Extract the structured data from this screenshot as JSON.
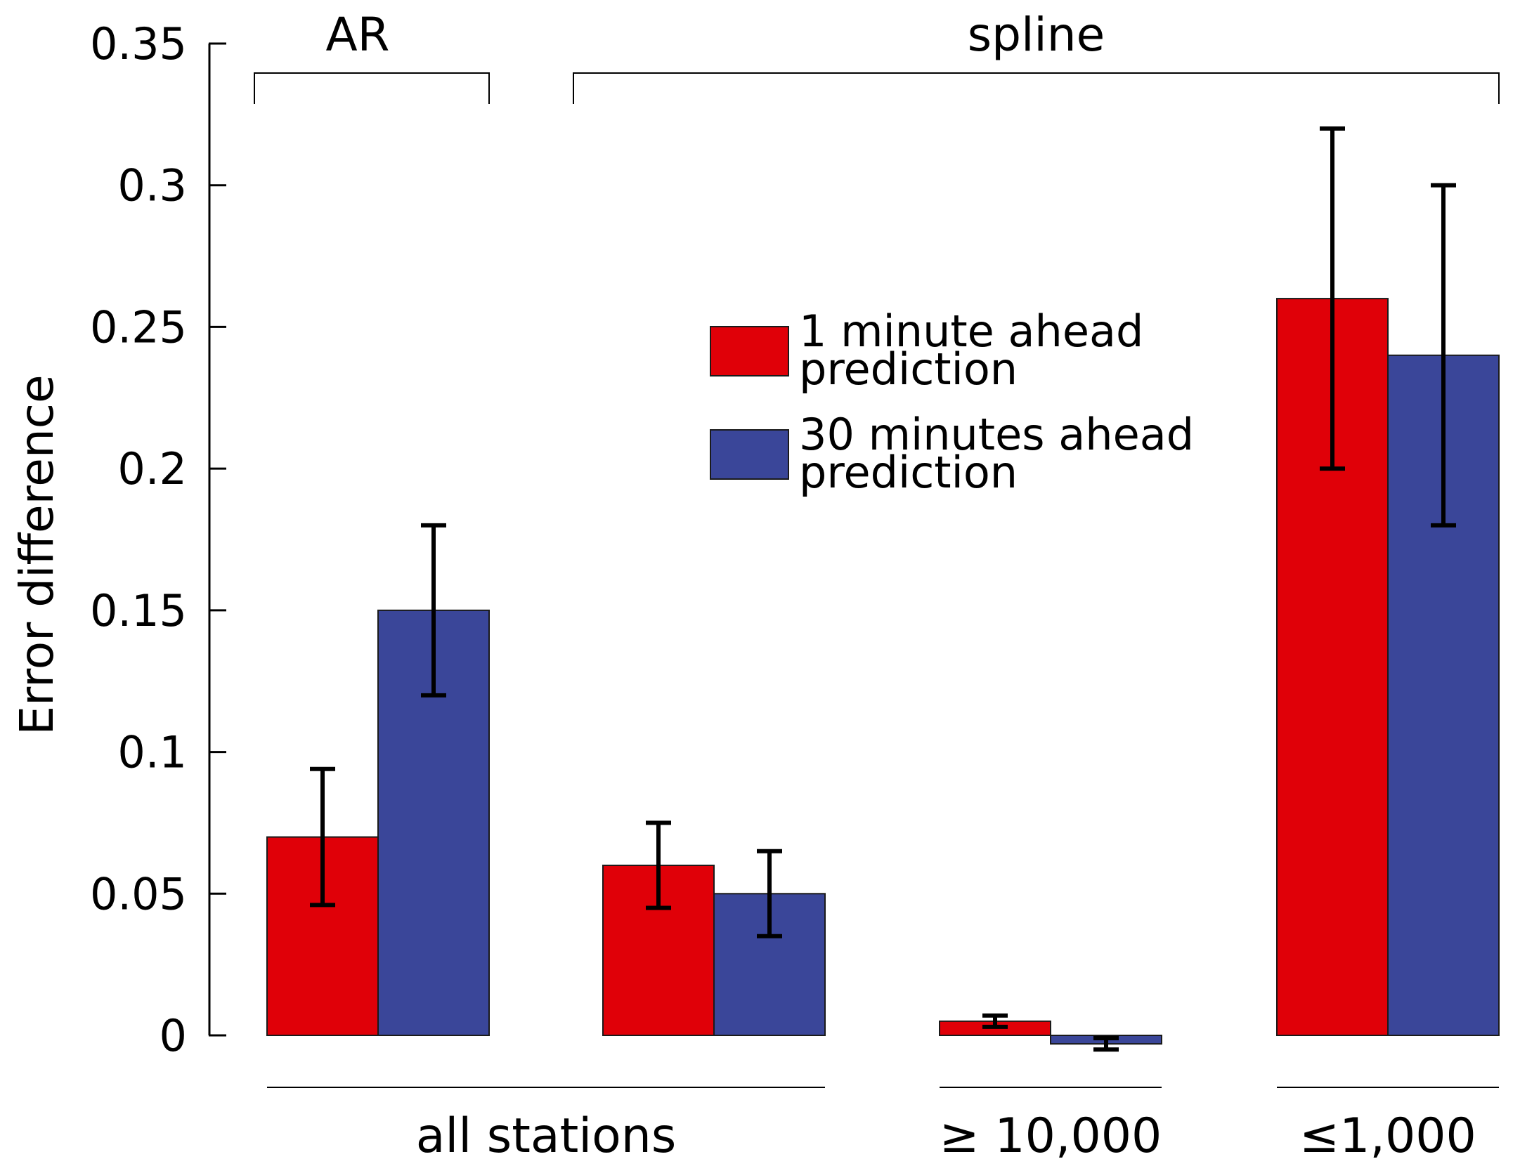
{
  "chart_data": {
    "type": "bar",
    "title": "",
    "ylabel": "Error difference",
    "xlabel": "",
    "ylim": [
      0,
      0.35
    ],
    "yticks": [
      {
        "value": 0,
        "label": "0"
      },
      {
        "value": 0.05,
        "label": "0.05"
      },
      {
        "value": 0.1,
        "label": "0.1"
      },
      {
        "value": 0.15,
        "label": "0.15"
      },
      {
        "value": 0.2,
        "label": "0.2"
      },
      {
        "value": 0.25,
        "label": "0.25"
      },
      {
        "value": 0.3,
        "label": "0.3"
      },
      {
        "value": 0.35,
        "label": "0.35"
      }
    ],
    "method_brackets": [
      {
        "label": "AR",
        "groups": [
          0
        ]
      },
      {
        "label": "spline",
        "groups": [
          1,
          2,
          3
        ]
      }
    ],
    "station_brackets": [
      {
        "label": "all stations",
        "groups": [
          0,
          1
        ]
      },
      {
        "label": "≥ 10,000",
        "groups": [
          2
        ]
      },
      {
        "label": "≤1,000",
        "groups": [
          3
        ]
      }
    ],
    "series": [
      {
        "name": "1 minute ahead prediction",
        "legend_lines": [
          "1 minute ahead",
          "prediction"
        ],
        "color": "#e00008",
        "values": [
          0.07,
          0.06,
          0.005,
          0.26
        ],
        "err_low": [
          0.046,
          0.045,
          0.003,
          0.2
        ],
        "err_high": [
          0.094,
          0.075,
          0.007,
          0.32
        ]
      },
      {
        "name": "30 minutes ahead prediction",
        "legend_lines": [
          "30 minutes ahead",
          "prediction"
        ],
        "color": "#3a4699",
        "values": [
          0.15,
          0.05,
          -0.003,
          0.24
        ],
        "err_low": [
          0.12,
          0.035,
          -0.005,
          0.18
        ],
        "err_high": [
          0.18,
          0.065,
          -0.001,
          0.3
        ]
      }
    ]
  }
}
